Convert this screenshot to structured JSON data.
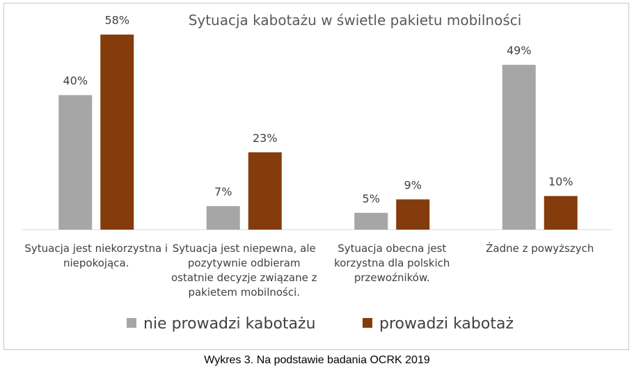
{
  "chart_data": {
    "type": "bar",
    "title": "Sytuacja kabotażu w świetle pakietu mobilności",
    "categories": [
      [
        "Sytuacja jest niekorzystna i",
        "niepokojąca."
      ],
      [
        "Sytuacja jest niepewna, ale",
        "pozytywnie odbieram",
        "ostatnie decyzje związane z",
        "pakietem mobilności."
      ],
      [
        "Sytuacja obecna jest",
        "korzystna dla polskich",
        "przewoźników."
      ],
      [
        "Żadne z powyższych"
      ]
    ],
    "series": [
      {
        "name": "nie prowadzi kabotażu",
        "color": "#a6a6a6",
        "values": [
          40,
          7,
          5,
          49
        ],
        "labels": [
          "40%",
          "7%",
          "5%",
          "49%"
        ]
      },
      {
        "name": "prowadzi kabotaż",
        "color": "#843c0c",
        "values": [
          58,
          23,
          9,
          10
        ],
        "labels": [
          "58%",
          "23%",
          "9%",
          "10%"
        ]
      }
    ],
    "ylim": [
      0,
      60
    ],
    "grid": false,
    "legend": "bottom"
  },
  "caption": "Wykres 3. Na podstawie badania OCRK 2019"
}
